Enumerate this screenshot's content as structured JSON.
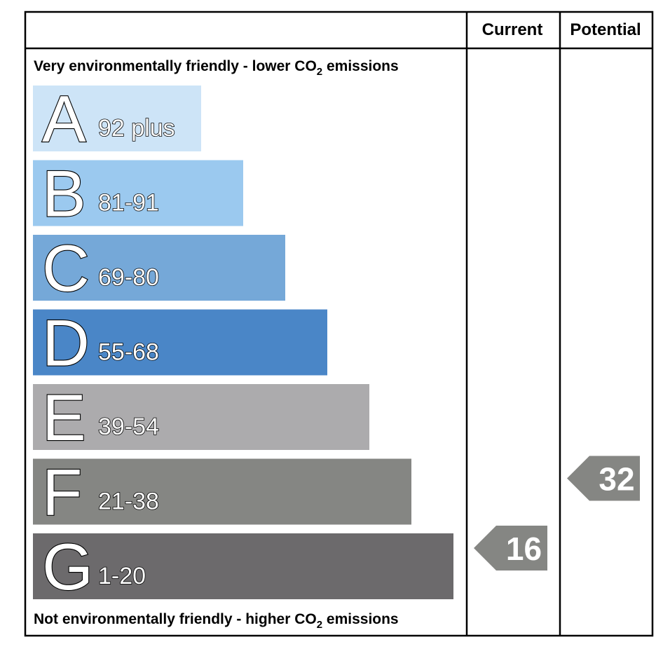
{
  "chart_data": {
    "type": "bar",
    "columns": {
      "current": "Current",
      "potential": "Potential"
    },
    "top_note": {
      "text": "Very environmentally friendly - lower CO",
      "sub": "2",
      "tail": " emissions"
    },
    "bottom_note": {
      "text": "Not environmentally friendly - higher CO",
      "sub": "2",
      "tail": " emissions"
    },
    "bands": [
      {
        "letter": "A",
        "range": "92 plus",
        "color": "#cde4f7"
      },
      {
        "letter": "B",
        "range": "81-91",
        "color": "#9bc9ef"
      },
      {
        "letter": "C",
        "range": "69-80",
        "color": "#75a8d8"
      },
      {
        "letter": "D",
        "range": "55-68",
        "color": "#4a86c7"
      },
      {
        "letter": "E",
        "range": "39-54",
        "color": "#acabad"
      },
      {
        "letter": "F",
        "range": "21-38",
        "color": "#858683"
      },
      {
        "letter": "G",
        "range": "1-20",
        "color": "#6c6a6c"
      }
    ],
    "current": {
      "value": "16",
      "band": "G",
      "color": "#858683"
    },
    "potential": {
      "value": "32",
      "band": "F",
      "color": "#858683"
    }
  }
}
